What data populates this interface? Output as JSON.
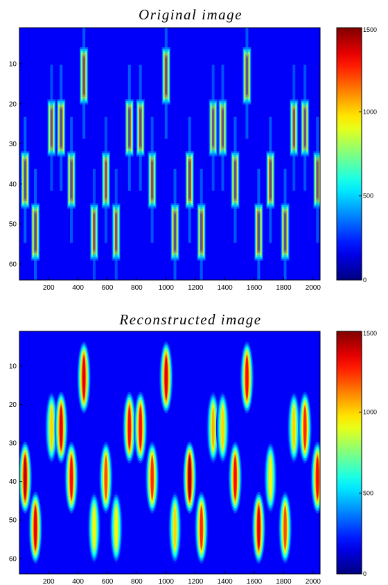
{
  "chart_data": [
    {
      "type": "heatmap",
      "title": "Original image",
      "xlim": [
        1,
        2048
      ],
      "ylim": [
        1,
        64
      ],
      "xticks": [
        200,
        400,
        600,
        800,
        1000,
        1200,
        1400,
        1600,
        1800,
        2000
      ],
      "yticks": [
        10,
        20,
        30,
        40,
        50,
        60
      ],
      "colorbar": {
        "min": 0,
        "max": 1500,
        "ticks": [
          0,
          500,
          1000,
          1500
        ],
        "colormap": "jet"
      },
      "blobs": [
        {
          "x": 440,
          "y": 13,
          "peak": 1400
        },
        {
          "x": 1000,
          "y": 13,
          "peak": 1400
        },
        {
          "x": 1550,
          "y": 13,
          "peak": 1400
        },
        {
          "x": 220,
          "y": 26,
          "peak": 1300
        },
        {
          "x": 285,
          "y": 26,
          "peak": 1450
        },
        {
          "x": 750,
          "y": 26,
          "peak": 1450
        },
        {
          "x": 825,
          "y": 26,
          "peak": 1400
        },
        {
          "x": 1320,
          "y": 26,
          "peak": 1300
        },
        {
          "x": 1385,
          "y": 26,
          "peak": 1350
        },
        {
          "x": 1870,
          "y": 26,
          "peak": 1300
        },
        {
          "x": 1945,
          "y": 26,
          "peak": 1350
        },
        {
          "x": 40,
          "y": 39,
          "peak": 1450
        },
        {
          "x": 355,
          "y": 39,
          "peak": 1400
        },
        {
          "x": 590,
          "y": 39,
          "peak": 1300
        },
        {
          "x": 905,
          "y": 39,
          "peak": 1350
        },
        {
          "x": 1160,
          "y": 39,
          "peak": 1450
        },
        {
          "x": 1470,
          "y": 39,
          "peak": 1400
        },
        {
          "x": 1710,
          "y": 39,
          "peak": 1400
        },
        {
          "x": 2030,
          "y": 39,
          "peak": 1300
        },
        {
          "x": 110,
          "y": 52,
          "peak": 1450
        },
        {
          "x": 510,
          "y": 52,
          "peak": 1300
        },
        {
          "x": 660,
          "y": 52,
          "peak": 1300
        },
        {
          "x": 1060,
          "y": 52,
          "peak": 1400
        },
        {
          "x": 1240,
          "y": 52,
          "peak": 1400
        },
        {
          "x": 1630,
          "y": 52,
          "peak": 1450
        },
        {
          "x": 1810,
          "y": 52,
          "peak": 1400
        }
      ]
    },
    {
      "type": "heatmap",
      "title": "Reconstructed image",
      "xlim": [
        1,
        2048
      ],
      "ylim": [
        1,
        64
      ],
      "xticks": [
        200,
        400,
        600,
        800,
        1000,
        1200,
        1400,
        1600,
        1800,
        2000
      ],
      "yticks": [
        10,
        20,
        30,
        40,
        50,
        60
      ],
      "colorbar": {
        "min": 0,
        "max": 1500,
        "ticks": [
          0,
          500,
          1000,
          1500
        ],
        "colormap": "jet"
      },
      "blobs": [
        {
          "x": 440,
          "y": 13,
          "peak": 1350
        },
        {
          "x": 1000,
          "y": 13,
          "peak": 1350
        },
        {
          "x": 1550,
          "y": 13,
          "peak": 1300
        },
        {
          "x": 220,
          "y": 26,
          "peak": 1000
        },
        {
          "x": 285,
          "y": 26,
          "peak": 1350
        },
        {
          "x": 750,
          "y": 26,
          "peak": 1300
        },
        {
          "x": 825,
          "y": 26,
          "peak": 1300
        },
        {
          "x": 1320,
          "y": 26,
          "peak": 1050
        },
        {
          "x": 1385,
          "y": 26,
          "peak": 1000
        },
        {
          "x": 1870,
          "y": 26,
          "peak": 1000
        },
        {
          "x": 1945,
          "y": 26,
          "peak": 1250
        },
        {
          "x": 40,
          "y": 39,
          "peak": 1400
        },
        {
          "x": 355,
          "y": 39,
          "peak": 1300
        },
        {
          "x": 590,
          "y": 39,
          "peak": 1200
        },
        {
          "x": 905,
          "y": 39,
          "peak": 1250
        },
        {
          "x": 1160,
          "y": 39,
          "peak": 1450
        },
        {
          "x": 1470,
          "y": 39,
          "peak": 1300
        },
        {
          "x": 1710,
          "y": 39,
          "peak": 950
        },
        {
          "x": 2030,
          "y": 39,
          "peak": 1300
        },
        {
          "x": 110,
          "y": 52,
          "peak": 1350
        },
        {
          "x": 510,
          "y": 52,
          "peak": 950
        },
        {
          "x": 660,
          "y": 52,
          "peak": 950
        },
        {
          "x": 1060,
          "y": 52,
          "peak": 1000
        },
        {
          "x": 1240,
          "y": 52,
          "peak": 1250
        },
        {
          "x": 1630,
          "y": 52,
          "peak": 1350
        },
        {
          "x": 1810,
          "y": 52,
          "peak": 1200
        }
      ]
    }
  ]
}
